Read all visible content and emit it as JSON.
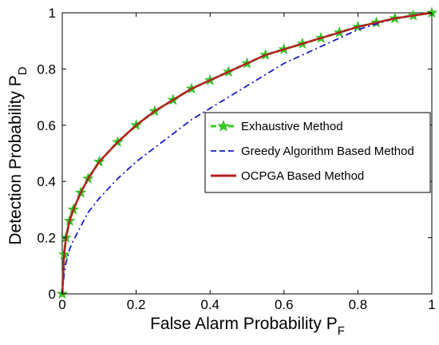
{
  "chart_data": {
    "type": "line",
    "title": "",
    "xlabel": "False Alarm Probability P",
    "xlabel_sub": "F",
    "ylabel": "Detection Probability P",
    "ylabel_sub": "D",
    "xlim": [
      0,
      1
    ],
    "ylim": [
      0,
      1
    ],
    "xticks": [
      "0",
      "0.2",
      "0.4",
      "0.6",
      "0.8",
      "1"
    ],
    "yticks": [
      "0",
      "0.2",
      "0.4",
      "0.6",
      "0.8",
      "1"
    ],
    "grid": false,
    "legend_position": "right",
    "series": [
      {
        "name": "Exhaustive Method",
        "style": "dashed with star markers",
        "color": "#33cc22",
        "x": [
          0,
          0.005,
          0.01,
          0.02,
          0.03,
          0.05,
          0.07,
          0.1,
          0.15,
          0.2,
          0.25,
          0.3,
          0.35,
          0.4,
          0.45,
          0.5,
          0.55,
          0.6,
          0.65,
          0.7,
          0.75,
          0.8,
          0.85,
          0.9,
          0.95,
          1.0
        ],
        "y": [
          0,
          0.14,
          0.2,
          0.26,
          0.3,
          0.36,
          0.41,
          0.47,
          0.54,
          0.6,
          0.65,
          0.69,
          0.73,
          0.76,
          0.79,
          0.82,
          0.85,
          0.87,
          0.89,
          0.91,
          0.93,
          0.95,
          0.965,
          0.98,
          0.99,
          1.0
        ]
      },
      {
        "name": "Greedy Algorithm Based Method",
        "style": "dash-dot",
        "color": "#1a1acc",
        "x": [
          0,
          0.005,
          0.01,
          0.02,
          0.03,
          0.05,
          0.07,
          0.1,
          0.15,
          0.2,
          0.25,
          0.3,
          0.35,
          0.4,
          0.45,
          0.5,
          0.55,
          0.6,
          0.65,
          0.7,
          0.75,
          0.8,
          0.85,
          0.9,
          0.95,
          1.0
        ],
        "y": [
          0,
          0.07,
          0.11,
          0.16,
          0.19,
          0.24,
          0.29,
          0.34,
          0.41,
          0.47,
          0.52,
          0.57,
          0.62,
          0.66,
          0.7,
          0.74,
          0.78,
          0.82,
          0.85,
          0.88,
          0.91,
          0.94,
          0.96,
          0.98,
          0.99,
          1.0
        ]
      },
      {
        "name": "OCPGA Based Method",
        "style": "solid",
        "color": "#b22222",
        "x": [
          0,
          0.005,
          0.01,
          0.02,
          0.03,
          0.05,
          0.07,
          0.1,
          0.15,
          0.2,
          0.25,
          0.3,
          0.35,
          0.4,
          0.45,
          0.5,
          0.55,
          0.6,
          0.65,
          0.7,
          0.75,
          0.8,
          0.85,
          0.9,
          0.95,
          1.0
        ],
        "y": [
          0,
          0.14,
          0.2,
          0.26,
          0.3,
          0.36,
          0.41,
          0.47,
          0.54,
          0.6,
          0.65,
          0.69,
          0.73,
          0.76,
          0.79,
          0.82,
          0.85,
          0.87,
          0.89,
          0.91,
          0.93,
          0.95,
          0.965,
          0.98,
          0.99,
          1.0
        ]
      }
    ]
  }
}
